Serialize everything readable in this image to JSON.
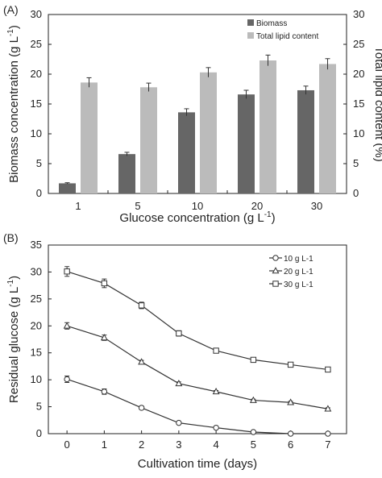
{
  "chart_data": [
    {
      "type": "bar",
      "panel_label": "(A)",
      "categories": [
        "1",
        "5",
        "10",
        "20",
        "30"
      ],
      "xlabel": "Glucose concentration (g L",
      "xlabel_sup": "-1",
      "xlabel_end": ")",
      "ylabel": "Biomass concentration (g L",
      "ylabel_sup": "-1",
      "ylabel_end": ")",
      "y2label": "Total lipid content (%)",
      "ylim": [
        0,
        30
      ],
      "y2lim": [
        0,
        30
      ],
      "yticks": [
        "0",
        "5",
        "10",
        "15",
        "20",
        "25",
        "30"
      ],
      "legend_position": "top-right",
      "series": [
        {
          "name": "Biomass",
          "color": "#666666",
          "axis": "left",
          "values": [
            1.7,
            6.6,
            13.6,
            16.6,
            17.3
          ],
          "errors": [
            0.1,
            0.3,
            0.6,
            0.7,
            0.7
          ]
        },
        {
          "name": "Total lipid content",
          "color": "#bbbbbb",
          "axis": "right",
          "values": [
            18.6,
            17.8,
            20.3,
            22.3,
            21.7
          ],
          "errors": [
            0.8,
            0.7,
            0.8,
            0.9,
            0.9
          ]
        }
      ]
    },
    {
      "type": "line",
      "panel_label": "(B)",
      "x": [
        0,
        1,
        2,
        3,
        4,
        5,
        6,
        7
      ],
      "xticks": [
        "0",
        "1",
        "2",
        "3",
        "4",
        "5",
        "6",
        "7"
      ],
      "yticks": [
        "0",
        "5",
        "10",
        "15",
        "20",
        "25",
        "30",
        "35"
      ],
      "xlabel": "Cultivation time (days)",
      "ylabel": "Residual glucose (g L",
      "ylabel_sup": "-1",
      "ylabel_end": ")",
      "xlim": [
        -0.5,
        7.5
      ],
      "ylim": [
        0,
        35
      ],
      "legend_position": "top-right",
      "series": [
        {
          "name": "10 g L-1",
          "marker": "circle",
          "values": [
            10.1,
            7.8,
            4.8,
            2.0,
            1.1,
            0.3,
            0.0,
            0.0
          ],
          "errors": [
            0.6,
            0.5,
            0.3,
            0.2,
            0.2,
            0.1,
            0.1,
            0.1
          ]
        },
        {
          "name": "20 g L-1",
          "marker": "triangle",
          "values": [
            20.0,
            17.8,
            13.3,
            9.3,
            7.8,
            6.2,
            5.8,
            4.6
          ],
          "errors": [
            0.6,
            0.5,
            0.3,
            0.3,
            0.2,
            0.2,
            0.2,
            0.2
          ]
        },
        {
          "name": "30 g L-1",
          "marker": "square",
          "values": [
            30.1,
            27.9,
            23.8,
            18.6,
            15.4,
            13.7,
            12.8,
            11.9
          ],
          "errors": [
            0.9,
            0.8,
            0.6,
            0.5,
            0.4,
            0.3,
            0.3,
            0.3
          ]
        }
      ]
    }
  ]
}
